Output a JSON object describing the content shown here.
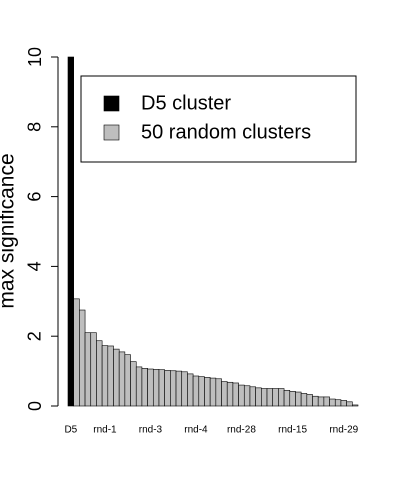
{
  "chart_data": {
    "type": "bar",
    "ylabel": "max significance",
    "categories": [
      "D5",
      null,
      null,
      null,
      null,
      null,
      "rnd-1",
      null,
      null,
      null,
      null,
      null,
      null,
      null,
      "rnd-3",
      null,
      null,
      null,
      null,
      null,
      null,
      null,
      "rnd-4",
      null,
      null,
      null,
      null,
      null,
      null,
      null,
      "rnd-28",
      null,
      null,
      null,
      null,
      null,
      null,
      null,
      null,
      "rnd-15",
      null,
      null,
      null,
      null,
      null,
      null,
      null,
      null,
      "rnd-29",
      null,
      null
    ],
    "series": [
      {
        "name": "D5 cluster",
        "color": "#000000",
        "values": [
          10,
          null,
          null,
          null,
          null,
          null,
          null,
          null,
          null,
          null,
          null,
          null,
          null,
          null,
          null,
          null,
          null,
          null,
          null,
          null,
          null,
          null,
          null,
          null,
          null,
          null,
          null,
          null,
          null,
          null,
          null,
          null,
          null,
          null,
          null,
          null,
          null,
          null,
          null,
          null,
          null,
          null,
          null,
          null,
          null,
          null,
          null,
          null,
          null,
          null,
          null
        ]
      },
      {
        "name": "50 random clusters",
        "color": "#bebebe",
        "values": [
          null,
          3.07,
          2.75,
          2.1,
          2.1,
          1.87,
          1.73,
          1.72,
          1.63,
          1.55,
          1.47,
          1.27,
          1.12,
          1.08,
          1.06,
          1.05,
          1.04,
          1.02,
          1.01,
          1.0,
          0.98,
          0.92,
          0.86,
          0.84,
          0.82,
          0.8,
          0.78,
          0.7,
          0.68,
          0.66,
          0.6,
          0.58,
          0.55,
          0.52,
          0.5,
          0.5,
          0.5,
          0.5,
          0.45,
          0.42,
          0.4,
          0.36,
          0.33,
          0.28,
          0.26,
          0.26,
          0.2,
          0.18,
          0.16,
          0.12,
          0.03
        ]
      }
    ],
    "ylim": [
      0,
      10
    ],
    "yticks": [
      0,
      2,
      4,
      6,
      8,
      10
    ],
    "grid": false,
    "legend": "top-right"
  }
}
